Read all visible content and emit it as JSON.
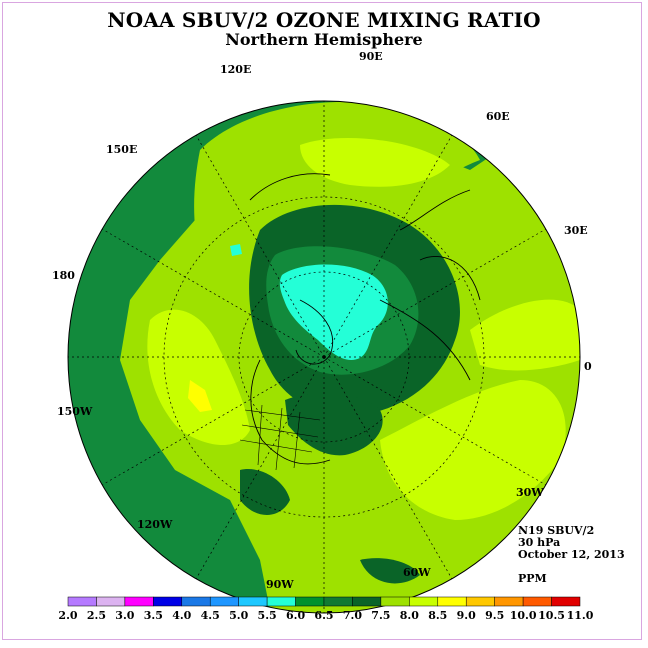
{
  "title": "NOAA SBUV/2 OZONE MIXING RATIO",
  "subtitle": "Northern Hemisphere",
  "longitude_labels": {
    "lon_90e": "90E",
    "lon_60e": "60E",
    "lon_30e": "30E",
    "lon_0": "0",
    "lon_30w": "30W",
    "lon_60w": "60W",
    "lon_90w": "90W",
    "lon_120w": "120W",
    "lon_150w": "150W",
    "lon_180": "180",
    "lon_150e": "150E",
    "lon_120e": "120E"
  },
  "info": {
    "satellite": "N19 SBUV/2",
    "level": "30 hPa",
    "date": "October 12, 2013",
    "units": "PPM"
  },
  "colorbar": {
    "ticks": [
      "2.0",
      "2.5",
      "3.0",
      "3.5",
      "4.0",
      "4.5",
      "5.0",
      "5.5",
      "6.0",
      "6.5",
      "7.0",
      "7.5",
      "8.0",
      "8.5",
      "9.0",
      "9.5",
      "10.0",
      "10.5",
      "11.0"
    ],
    "colors": [
      "#b57aff",
      "#dcb3f0",
      "#ff00ff",
      "#0000e6",
      "#1a78e6",
      "#1e96ff",
      "#1ec8ff",
      "#24ffd7",
      "#00912d",
      "#107a32",
      "#0a6428",
      "#9ee100",
      "#c8ff00",
      "#ffff00",
      "#ffc800",
      "#ff9600",
      "#ff5a00",
      "#e10000",
      "#82502d"
    ]
  },
  "field_colors": {
    "level_6_0_6_5": "#00912d",
    "level_6_5_7_0": "#128a3c",
    "level_7_0_7_5": "#0a6428",
    "level_7_5_8_0": "#9ee100",
    "level_8_0_8_5": "#c8ff00",
    "level_8_5_9_0": "#ffff00",
    "level_5_5_6_0": "#24ffd7"
  }
}
